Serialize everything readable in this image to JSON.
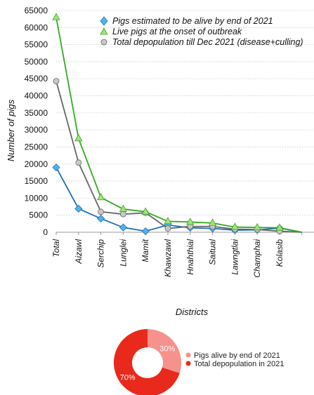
{
  "chart_data": [
    {
      "type": "line",
      "title": "",
      "xlabel": "Districts",
      "ylabel": "Number of pigs",
      "ylim": [
        0,
        65000
      ],
      "yticks": [
        0,
        5000,
        10000,
        15000,
        20000,
        25000,
        30000,
        35000,
        40000,
        45000,
        50000,
        55000,
        60000,
        65000
      ],
      "grid": "horizontal-dotted",
      "legend_position": "top-right",
      "categories": [
        "Total",
        "Aizawl",
        "Serchip",
        "Lunglei",
        "Mamit",
        "Khawzawl",
        "Hnahthial",
        "Saitual",
        "Lawngtlai",
        "Champhai",
        "Kolasib",
        ""
      ],
      "series": [
        {
          "name": "Pigs estimated to be alive by end of 2021",
          "color": "#1f6fb5",
          "marker_color": "#4db3f0",
          "marker": "diamond",
          "values": [
            19000,
            6900,
            4000,
            1400,
            300,
            2100,
            1300,
            1100,
            600,
            700,
            1200,
            0
          ]
        },
        {
          "name": "Live pigs at the onset of outbreak",
          "color": "#33aa22",
          "marker_color": "#a6e07a",
          "marker": "triangle",
          "values": [
            63000,
            27500,
            10200,
            6800,
            6000,
            3200,
            3000,
            2700,
            1500,
            1400,
            1300,
            0
          ]
        },
        {
          "name": "Total depopulation till Dec 2021 (disease+culling)",
          "color": "#666666",
          "marker_color": "#c8c8c8",
          "marker": "circle",
          "values": [
            44300,
            20400,
            6000,
            5300,
            5700,
            1100,
            1700,
            1700,
            900,
            800,
            300,
            0
          ]
        }
      ]
    },
    {
      "type": "pie",
      "donut": true,
      "title": "",
      "slices": [
        {
          "name": "Pigs alive by end of 2021",
          "value": 30,
          "label": "30%",
          "color": "#f6928b"
        },
        {
          "name": "Total depopulation in 2021",
          "value": 70,
          "label": "70%",
          "color": "#e8291c"
        }
      ],
      "legend_position": "right"
    }
  ]
}
